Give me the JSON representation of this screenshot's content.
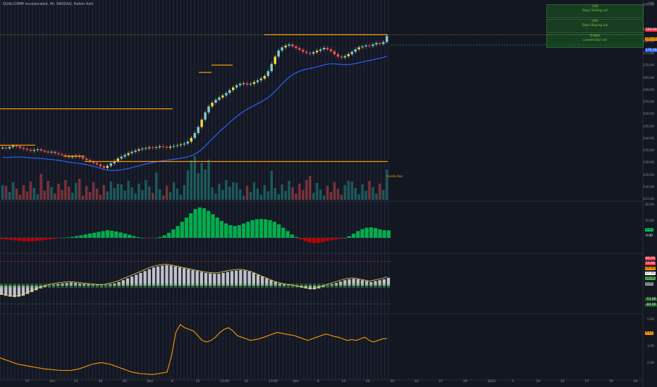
{
  "header": {
    "title": "QUALCOMM Incorporated, 4h, NASDAQ, Heikin Ashi"
  },
  "info_boxes": [
    {
      "value": "(28)",
      "label": "Days Selling vol"
    },
    {
      "value": "(40)",
      "label": "Days Buying vol"
    },
    {
      "value": "(1968)",
      "label": "current Bar vol"
    }
  ],
  "annotation": "Inside Bar",
  "price_axis": {
    "labels": [
      "(20)",
      "195.00",
      "185.00",
      "180.00",
      "175.00",
      "170.00",
      "165.00",
      "160.00",
      "155.00",
      "150.00",
      "145.00",
      "140.00",
      "135.00",
      "130.00",
      "125.00",
      "120.00",
      "115.00"
    ],
    "tags": [
      {
        "text": "183.00",
        "bg": "#f23645",
        "color": "#ffffff"
      },
      {
        "text": "181.21",
        "bg": "#ff9800",
        "color": "#131722"
      },
      {
        "text": "176.56",
        "bg": "#2962ff",
        "color": "#ffffff"
      }
    ]
  },
  "osc1_axis": {
    "labels": [
      "20.00",
      "10.00"
    ],
    "tags": [
      {
        "text": "4.43",
        "bg": "#00c853",
        "color": "#131722"
      },
      {
        "text": "0.00",
        "bg": "#131722",
        "color": "#ffffff"
      }
    ]
  },
  "osc2_axis": {
    "tags": [
      {
        "text": "60.00",
        "bg": "#f23645",
        "color": "#ffffff"
      },
      {
        "text": "53.00",
        "bg": "#f23645",
        "color": "#ffffff"
      },
      {
        "text": "24.90",
        "bg": "#ff9800",
        "color": "#131722"
      },
      {
        "text": "17.41",
        "bg": "#ffffff",
        "color": "#131722"
      },
      {
        "text": "12.54",
        "bg": "#4caf50",
        "color": "#131722"
      },
      {
        "text": "0.00",
        "bg": "#9598a1",
        "color": "#131722"
      },
      {
        "text": "-53.00",
        "bg": "#1b5e20",
        "color": "#ffffff"
      },
      {
        "text": "-60.00",
        "bg": "#1b5e20",
        "color": "#ffffff"
      }
    ]
  },
  "osc3_axis": {
    "labels": [
      "5.00",
      "3.00",
      "2.00"
    ],
    "tags": [
      {
        "text": "4.11",
        "bg": "#ff9800",
        "color": "#131722"
      }
    ]
  },
  "time_axis": {
    "labels": [
      "27",
      "Oct",
      "11",
      "18",
      "25",
      "Nov",
      "8",
      "15",
      "13:00",
      "22",
      "13:00",
      "Dec",
      "6",
      "13",
      "16",
      "20",
      "22",
      "27",
      "29",
      "2022",
      "5",
      "10",
      "12",
      "17",
      "19",
      "24"
    ]
  },
  "chart_data": {
    "type": "candlestick",
    "title": "QUALCOMM Incorporated, 4h, NASDAQ, Heikin Ashi",
    "price_range": [
      115,
      195
    ],
    "close": [
      136.5,
      136.2,
      136.8,
      137.2,
      137.0,
      136.4,
      136.0,
      135.6,
      135.2,
      135.5,
      135.8,
      135.3,
      134.9,
      134.5,
      134.8,
      134.2,
      133.8,
      133.4,
      133.0,
      132.5,
      132.8,
      133.2,
      132.6,
      132.0,
      131.4,
      130.8,
      130.2,
      129.6,
      128.8,
      128.2,
      129.0,
      130.0,
      131.0,
      132.0,
      132.8,
      133.5,
      134.2,
      134.8,
      135.3,
      135.8,
      136.1,
      136.3,
      136.6,
      136.4,
      136.7,
      137.0,
      136.8,
      136.5,
      136.9,
      137.2,
      137.5,
      137.8,
      138.2,
      139.0,
      140.5,
      142.5,
      145.0,
      148.0,
      151.0,
      153.5,
      155.0,
      156.2,
      157.2,
      158.0,
      159.0,
      160.2,
      161.3,
      162.2,
      162.8,
      163.0,
      162.5,
      162.8,
      163.5,
      164.2,
      165.0,
      166.0,
      168.0,
      171.0,
      174.0,
      176.5,
      177.8,
      178.5,
      179.0,
      178.2,
      177.5,
      176.8,
      176.0,
      175.5,
      175.2,
      175.8,
      176.4,
      177.0,
      177.6,
      177.0,
      176.2,
      175.0,
      174.0,
      173.6,
      174.2,
      175.0,
      176.0,
      177.0,
      177.8,
      178.2,
      178.6,
      178.4,
      179.0,
      179.6,
      179.2,
      180.0,
      182.5
    ]
  },
  "oscillators": {
    "momentum_histogram": [
      -0.8,
      -1.0,
      -1.2,
      -1.5,
      -1.8,
      -2.0,
      -2.1,
      -2.0,
      -1.8,
      -1.5,
      -1.2,
      -0.9,
      -0.6,
      -0.3,
      0,
      0.3,
      0.6,
      1.0,
      1.5,
      2.0,
      2.5,
      3.0,
      3.5,
      4.0,
      4.5,
      4.2,
      3.8,
      3.2,
      2.5,
      1.8,
      1.0,
      0.4,
      0,
      -0.2,
      -0.1,
      0,
      0.5,
      1.5,
      3.0,
      5.0,
      7.0,
      9.5,
      12.0,
      14.5,
      17.0,
      18.0,
      17.5,
      16.0,
      14.0,
      12.0,
      10.0,
      8.5,
      7.5,
      7.0,
      7.5,
      8.5,
      9.5,
      10.5,
      11.0,
      11.2,
      11.0,
      10.5,
      9.5,
      8.0,
      6.0,
      4.0,
      2.0,
      0.5,
      -1.0,
      -2.0,
      -2.8,
      -3.2,
      -3.0,
      -2.5,
      -2.0,
      -1.5,
      -1.0,
      -0.5,
      0,
      1.0,
      2.5,
      4.0,
      5.2,
      6.0,
      6.2,
      5.8,
      5.0,
      4.5,
      4.43
    ],
    "macd_line": [
      -20,
      -22,
      -24,
      -25,
      -24,
      -22,
      -18,
      -14,
      -10,
      -6,
      -3,
      0,
      2,
      4,
      5,
      6,
      7,
      6,
      5,
      4,
      3,
      2,
      1,
      0,
      1,
      3,
      5,
      8,
      12,
      16,
      20,
      24,
      28,
      32,
      36,
      40,
      42,
      44,
      45,
      44,
      42,
      40,
      38,
      36,
      34,
      32,
      30,
      28,
      27,
      26,
      26,
      28,
      30,
      32,
      33,
      34,
      33,
      31,
      28,
      24,
      20,
      16,
      12,
      8,
      5,
      3,
      1,
      0,
      -2,
      -4,
      -6,
      -8,
      -8,
      -6,
      -3,
      0,
      3,
      6,
      9,
      12,
      14,
      15,
      14,
      12,
      10,
      8,
      10,
      12,
      14,
      17.41
    ],
    "rvol": [
      2.9,
      2.8,
      2.7,
      2.6,
      2.5,
      2.45,
      2.4,
      2.35,
      2.3,
      2.25,
      2.2,
      2.18,
      2.15,
      2.12,
      2.1,
      2.1,
      2.1,
      2.15,
      2.2,
      2.3,
      2.4,
      2.5,
      2.55,
      2.6,
      2.55,
      2.5,
      2.4,
      2.3,
      2.2,
      2.1,
      2.0,
      1.95,
      1.9,
      1.88,
      1.85,
      1.85,
      1.9,
      1.95,
      2.0,
      3.0,
      4.5,
      5.0,
      4.8,
      4.7,
      4.6,
      4.3,
      4.0,
      3.9,
      4.0,
      4.2,
      4.5,
      4.7,
      4.8,
      4.6,
      4.3,
      4.2,
      4.1,
      4.0,
      4.05,
      4.1,
      4.2,
      4.3,
      4.4,
      4.5,
      4.45,
      4.4,
      4.35,
      4.3,
      4.2,
      4.1,
      4.0,
      4.1,
      4.2,
      4.3,
      4.4,
      4.35,
      4.25,
      4.2,
      4.1,
      4.0,
      4.05,
      4.0,
      4.1,
      4.2,
      4.0,
      3.9,
      4.0,
      4.1,
      4.11
    ]
  }
}
